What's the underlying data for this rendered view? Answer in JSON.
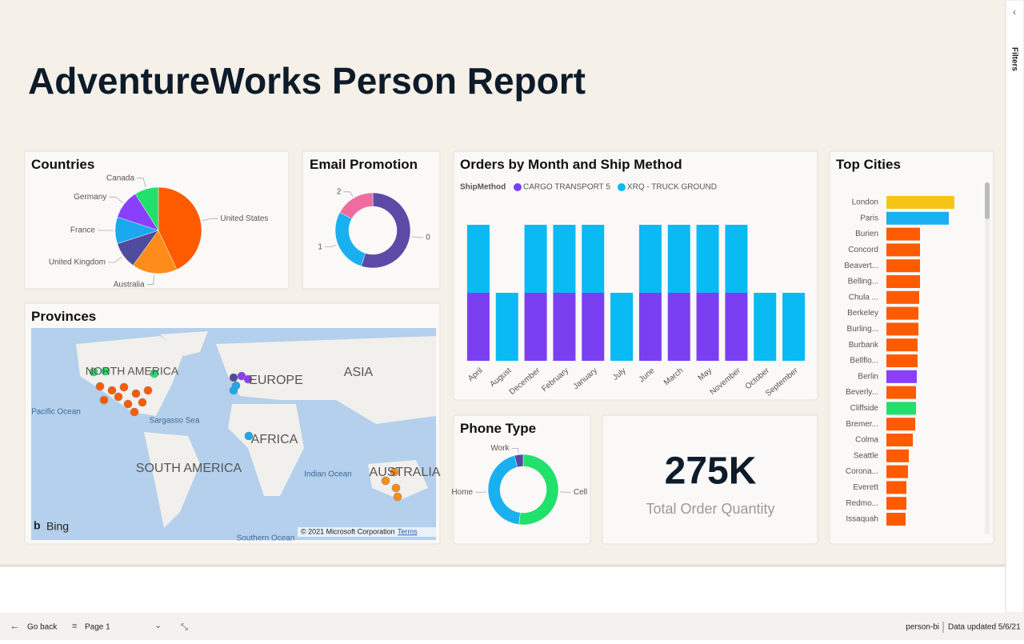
{
  "title": "AdventureWorks Person Report",
  "filters_label": "Filters",
  "footer": {
    "back": "Go back",
    "page": "Page 1",
    "report": "person-bi",
    "updated": "Data updated 5/6/21"
  },
  "chart_data": [
    {
      "type": "pie",
      "title": "Countries",
      "categories": [
        "United States",
        "Australia",
        "United Kingdom",
        "France",
        "Germany",
        "Canada"
      ],
      "values": [
        43,
        17,
        10,
        10,
        11,
        9
      ],
      "colors": [
        "#fe5b00",
        "#fe8c1a",
        "#4f4b9e",
        "#1aa8f0",
        "#8a3ffc",
        "#22e06c"
      ]
    },
    {
      "type": "donut",
      "title": "Email Promotion",
      "categories": [
        "0",
        "1",
        "2"
      ],
      "values": [
        55,
        28,
        17
      ],
      "colors": [
        "#5b4ba7",
        "#1ab0f0",
        "#f06ca0"
      ]
    },
    {
      "type": "stacked_bar",
      "title": "Orders by Month and Ship Method",
      "legend_title": "ShipMethod",
      "categories": [
        "April",
        "August",
        "December",
        "February",
        "January",
        "July",
        "June",
        "March",
        "May",
        "November",
        "October",
        "September"
      ],
      "series": [
        {
          "name": "CARGO TRANSPORT 5",
          "color": "#7b3ff2",
          "values": [
            20,
            null,
            20,
            20,
            20,
            null,
            20,
            20,
            20,
            20,
            null,
            null
          ]
        },
        {
          "name": "XRQ - TRUCK GROUND",
          "color": "#0abaf2",
          "values": [
            20,
            20,
            20,
            20,
            20,
            20,
            20,
            20,
            20,
            20,
            20,
            20
          ]
        }
      ]
    },
    {
      "type": "hbar",
      "title": "Top Cities",
      "categories": [
        "London",
        "Paris",
        "Burien",
        "Concord",
        "Beavert...",
        "Belling...",
        "Chula ...",
        "Berkeley",
        "Burling...",
        "Burbank",
        "Bellflo...",
        "Berlin",
        "Beverly...",
        "Cliffside",
        "Bremer...",
        "Colma",
        "Seattle",
        "Corona...",
        "Everett",
        "Redmo...",
        "Issaquah"
      ],
      "values": [
        85,
        78,
        42,
        42,
        42,
        42,
        41,
        40,
        40,
        39,
        39,
        38,
        37,
        37,
        36,
        33,
        28,
        27,
        25,
        25,
        24
      ],
      "colors": [
        "#f5c518",
        "#1ab0f0",
        "#fe5b00",
        "#fe5b00",
        "#fe5b00",
        "#fe5b00",
        "#fe5b00",
        "#fe5b00",
        "#fe5b00",
        "#fe5b00",
        "#fe5b00",
        "#8a3ffc",
        "#fe5b00",
        "#22e06c",
        "#fe5b00",
        "#fe5b00",
        "#fe5b00",
        "#fe5b00",
        "#fe5b00",
        "#fe5b00",
        "#fe5b00"
      ]
    },
    {
      "type": "donut",
      "title": "Phone Type",
      "categories": [
        "Cell",
        "Home",
        "Work"
      ],
      "values": [
        52,
        44,
        4
      ],
      "colors": [
        "#22e06c",
        "#1ab0f0",
        "#4f4b9e"
      ]
    }
  ],
  "card": {
    "value": "275K",
    "label": "Total Order Quantity"
  },
  "map": {
    "title": "Provinces",
    "labels": [
      "NORTH AMERICA",
      "EUROPE",
      "ASIA",
      "AFRICA",
      "SOUTH AMERICA",
      "AUSTRALIA",
      "Pacific Ocean",
      "Sargasso Sea",
      "Indian Ocean",
      "Southern Ocean"
    ],
    "brand": "Bing",
    "copyright": "© 2021 Microsoft Corporation",
    "terms": "Terms"
  }
}
